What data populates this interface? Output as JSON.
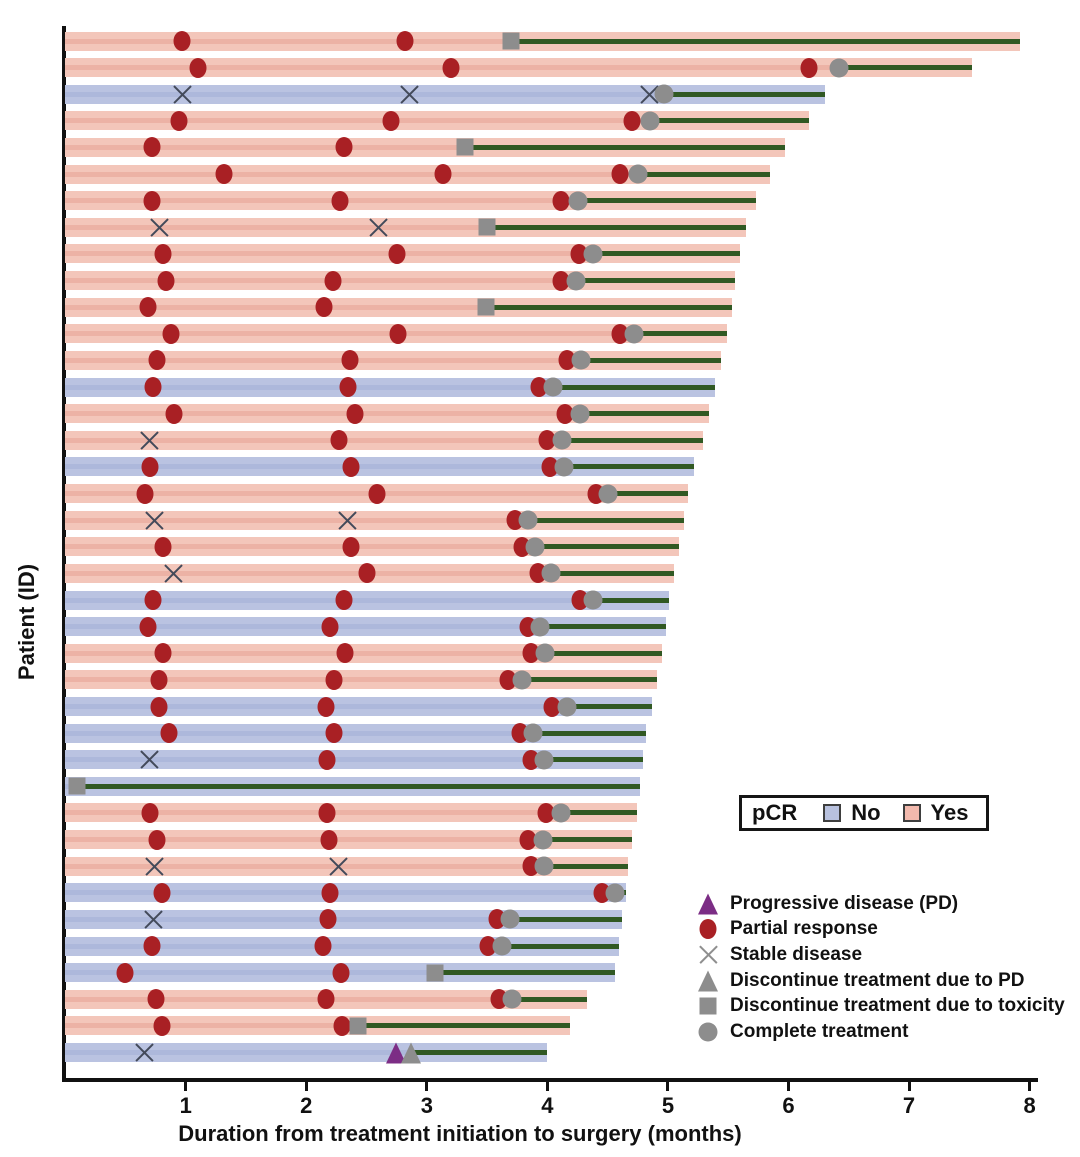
{
  "figure": {
    "x_axis": {
      "label": "Duration from treatment initiation to surgery (months)",
      "ticks": [
        1,
        2,
        3,
        4,
        5,
        6,
        7,
        8
      ],
      "min": 0,
      "max": 8
    },
    "y_axis": {
      "label": "Patient (ID)"
    }
  },
  "pcr_legend": {
    "title": "pCR",
    "no_label": "No",
    "yes_label": "Yes"
  },
  "marker_legend": [
    {
      "type": "pd",
      "label": "Progressive disease (PD)"
    },
    {
      "type": "pr",
      "label": "Partial response"
    },
    {
      "type": "sd",
      "label": "Stable disease"
    },
    {
      "type": "disc_pd",
      "label": "Discontinue treatment due to PD"
    },
    {
      "type": "disc_tox",
      "label": "Discontinue treatment due to toxicity"
    },
    {
      "type": "complete",
      "label": "Complete treatment"
    }
  ],
  "colors": {
    "pcr_yes": "#f3c6ba",
    "pcr_no": "#bac3e1",
    "partial_response": "#a92024",
    "surgery_line": "#315923",
    "gray_marker": "#8d8d8d",
    "progressive_disease": "#7c2d85",
    "axis": "#111111"
  },
  "chart_data": {
    "type": "bar",
    "subtype": "swimmer-plot",
    "xlabel": "Duration from treatment initiation to surgery (months)",
    "ylabel": "Patient (ID)",
    "xlim": [
      0,
      8
    ],
    "x_ticks": [
      1,
      2,
      3,
      4,
      5,
      6,
      7,
      8
    ],
    "grid": false,
    "legend_position": "lower-right",
    "patients": [
      {
        "pcr": "Yes",
        "surgery": 7.92,
        "treatment_end": 3.7,
        "markers": [
          {
            "type": "pr",
            "month": 0.97
          },
          {
            "type": "pr",
            "month": 2.82
          },
          {
            "type": "disc_tox",
            "month": 3.7
          }
        ]
      },
      {
        "pcr": "Yes",
        "surgery": 7.52,
        "treatment_end": 6.42,
        "markers": [
          {
            "type": "pr",
            "month": 1.1
          },
          {
            "type": "pr",
            "month": 3.2
          },
          {
            "type": "pr",
            "month": 6.17
          },
          {
            "type": "complete",
            "month": 6.42
          }
        ]
      },
      {
        "pcr": "No",
        "surgery": 6.3,
        "treatment_end": 4.97,
        "markers": [
          {
            "type": "sd",
            "month": 0.97
          },
          {
            "type": "sd",
            "month": 2.86
          },
          {
            "type": "sd",
            "month": 4.85
          },
          {
            "type": "complete",
            "month": 4.97
          }
        ]
      },
      {
        "pcr": "Yes",
        "surgery": 6.17,
        "treatment_end": 4.85,
        "markers": [
          {
            "type": "pr",
            "month": 0.94
          },
          {
            "type": "pr",
            "month": 2.7
          },
          {
            "type": "pr",
            "month": 4.7
          },
          {
            "type": "complete",
            "month": 4.85
          }
        ]
      },
      {
        "pcr": "Yes",
        "surgery": 5.97,
        "treatment_end": 3.32,
        "markers": [
          {
            "type": "pr",
            "month": 0.72
          },
          {
            "type": "pr",
            "month": 2.31
          },
          {
            "type": "disc_tox",
            "month": 3.32
          }
        ]
      },
      {
        "pcr": "Yes",
        "surgery": 5.85,
        "treatment_end": 4.75,
        "markers": [
          {
            "type": "pr",
            "month": 1.32
          },
          {
            "type": "pr",
            "month": 3.13
          },
          {
            "type": "pr",
            "month": 4.6
          },
          {
            "type": "complete",
            "month": 4.75
          }
        ]
      },
      {
        "pcr": "Yes",
        "surgery": 5.73,
        "treatment_end": 4.25,
        "markers": [
          {
            "type": "pr",
            "month": 0.72
          },
          {
            "type": "pr",
            "month": 2.28
          },
          {
            "type": "pr",
            "month": 4.11
          },
          {
            "type": "complete",
            "month": 4.25
          }
        ]
      },
      {
        "pcr": "Yes",
        "surgery": 5.65,
        "treatment_end": 3.5,
        "markers": [
          {
            "type": "sd",
            "month": 0.78
          },
          {
            "type": "sd",
            "month": 2.6
          },
          {
            "type": "disc_tox",
            "month": 3.5
          }
        ]
      },
      {
        "pcr": "Yes",
        "surgery": 5.6,
        "treatment_end": 4.38,
        "markers": [
          {
            "type": "pr",
            "month": 0.81
          },
          {
            "type": "pr",
            "month": 2.75
          },
          {
            "type": "pr",
            "month": 4.26
          },
          {
            "type": "complete",
            "month": 4.38
          }
        ]
      },
      {
        "pcr": "Yes",
        "surgery": 5.56,
        "treatment_end": 4.24,
        "markers": [
          {
            "type": "pr",
            "month": 0.84
          },
          {
            "type": "pr",
            "month": 2.22
          },
          {
            "type": "pr",
            "month": 4.11
          },
          {
            "type": "complete",
            "month": 4.24
          }
        ]
      },
      {
        "pcr": "Yes",
        "surgery": 5.53,
        "treatment_end": 3.49,
        "markers": [
          {
            "type": "pr",
            "month": 0.69
          },
          {
            "type": "pr",
            "month": 2.15
          },
          {
            "type": "disc_tox",
            "month": 3.49
          }
        ]
      },
      {
        "pcr": "Yes",
        "surgery": 5.49,
        "treatment_end": 4.72,
        "markers": [
          {
            "type": "pr",
            "month": 0.88
          },
          {
            "type": "pr",
            "month": 2.76
          },
          {
            "type": "pr",
            "month": 4.6
          },
          {
            "type": "complete",
            "month": 4.72
          }
        ]
      },
      {
        "pcr": "Yes",
        "surgery": 5.44,
        "treatment_end": 4.28,
        "markers": [
          {
            "type": "pr",
            "month": 0.76
          },
          {
            "type": "pr",
            "month": 2.36
          },
          {
            "type": "pr",
            "month": 4.16
          },
          {
            "type": "complete",
            "month": 4.28
          }
        ]
      },
      {
        "pcr": "No",
        "surgery": 5.39,
        "treatment_end": 4.05,
        "markers": [
          {
            "type": "pr",
            "month": 0.73
          },
          {
            "type": "pr",
            "month": 2.35
          },
          {
            "type": "pr",
            "month": 3.93
          },
          {
            "type": "complete",
            "month": 4.05
          }
        ]
      },
      {
        "pcr": "Yes",
        "surgery": 5.34,
        "treatment_end": 4.27,
        "markers": [
          {
            "type": "pr",
            "month": 0.9
          },
          {
            "type": "pr",
            "month": 2.4
          },
          {
            "type": "pr",
            "month": 4.15
          },
          {
            "type": "complete",
            "month": 4.27
          }
        ]
      },
      {
        "pcr": "Yes",
        "surgery": 5.29,
        "treatment_end": 4.12,
        "markers": [
          {
            "type": "sd",
            "month": 0.7
          },
          {
            "type": "pr",
            "month": 2.27
          },
          {
            "type": "pr",
            "month": 4.0
          },
          {
            "type": "complete",
            "month": 4.12
          }
        ]
      },
      {
        "pcr": "No",
        "surgery": 5.22,
        "treatment_end": 4.14,
        "markers": [
          {
            "type": "pr",
            "month": 0.7
          },
          {
            "type": "pr",
            "month": 2.37
          },
          {
            "type": "pr",
            "month": 4.02
          },
          {
            "type": "complete",
            "month": 4.14
          }
        ]
      },
      {
        "pcr": "Yes",
        "surgery": 5.17,
        "treatment_end": 4.5,
        "markers": [
          {
            "type": "pr",
            "month": 0.66
          },
          {
            "type": "pr",
            "month": 2.59
          },
          {
            "type": "pr",
            "month": 4.4
          },
          {
            "type": "complete",
            "month": 4.5
          }
        ]
      },
      {
        "pcr": "Yes",
        "surgery": 5.13,
        "treatment_end": 3.84,
        "markers": [
          {
            "type": "sd",
            "month": 0.74
          },
          {
            "type": "sd",
            "month": 2.34
          },
          {
            "type": "pr",
            "month": 3.73
          },
          {
            "type": "complete",
            "month": 3.84
          }
        ]
      },
      {
        "pcr": "Yes",
        "surgery": 5.09,
        "treatment_end": 3.9,
        "markers": [
          {
            "type": "pr",
            "month": 0.81
          },
          {
            "type": "pr",
            "month": 2.37
          },
          {
            "type": "pr",
            "month": 3.79
          },
          {
            "type": "complete",
            "month": 3.9
          }
        ]
      },
      {
        "pcr": "Yes",
        "surgery": 5.05,
        "treatment_end": 4.03,
        "markers": [
          {
            "type": "sd",
            "month": 0.9
          },
          {
            "type": "pr",
            "month": 2.5
          },
          {
            "type": "pr",
            "month": 3.92
          },
          {
            "type": "complete",
            "month": 4.03
          }
        ]
      },
      {
        "pcr": "No",
        "surgery": 5.01,
        "treatment_end": 4.38,
        "markers": [
          {
            "type": "pr",
            "month": 0.73
          },
          {
            "type": "pr",
            "month": 2.31
          },
          {
            "type": "pr",
            "month": 4.27
          },
          {
            "type": "complete",
            "month": 4.38
          }
        ]
      },
      {
        "pcr": "No",
        "surgery": 4.98,
        "treatment_end": 3.94,
        "markers": [
          {
            "type": "pr",
            "month": 0.69
          },
          {
            "type": "pr",
            "month": 2.2
          },
          {
            "type": "pr",
            "month": 3.84
          },
          {
            "type": "complete",
            "month": 3.94
          }
        ]
      },
      {
        "pcr": "Yes",
        "surgery": 4.95,
        "treatment_end": 3.98,
        "markers": [
          {
            "type": "pr",
            "month": 0.81
          },
          {
            "type": "pr",
            "month": 2.32
          },
          {
            "type": "pr",
            "month": 3.86
          },
          {
            "type": "complete",
            "month": 3.98
          }
        ]
      },
      {
        "pcr": "Yes",
        "surgery": 4.91,
        "treatment_end": 3.79,
        "markers": [
          {
            "type": "pr",
            "month": 0.78
          },
          {
            "type": "pr",
            "month": 2.23
          },
          {
            "type": "pr",
            "month": 3.67
          },
          {
            "type": "complete",
            "month": 3.79
          }
        ]
      },
      {
        "pcr": "No",
        "surgery": 4.87,
        "treatment_end": 4.16,
        "markers": [
          {
            "type": "pr",
            "month": 0.78
          },
          {
            "type": "pr",
            "month": 2.16
          },
          {
            "type": "pr",
            "month": 4.04
          },
          {
            "type": "complete",
            "month": 4.16
          }
        ]
      },
      {
        "pcr": "No",
        "surgery": 4.82,
        "treatment_end": 3.88,
        "markers": [
          {
            "type": "pr",
            "month": 0.86
          },
          {
            "type": "pr",
            "month": 2.23
          },
          {
            "type": "pr",
            "month": 3.77
          },
          {
            "type": "complete",
            "month": 3.88
          }
        ]
      },
      {
        "pcr": "No",
        "surgery": 4.79,
        "treatment_end": 3.97,
        "markers": [
          {
            "type": "sd",
            "month": 0.7
          },
          {
            "type": "pr",
            "month": 2.17
          },
          {
            "type": "pr",
            "month": 3.86
          },
          {
            "type": "complete",
            "month": 3.97
          }
        ]
      },
      {
        "pcr": "No",
        "surgery": 4.77,
        "treatment_end": 0.1,
        "markers": [
          {
            "type": "disc_tox",
            "month": 0.1
          }
        ]
      },
      {
        "pcr": "Yes",
        "surgery": 4.74,
        "treatment_end": 4.11,
        "markers": [
          {
            "type": "pr",
            "month": 0.7
          },
          {
            "type": "pr",
            "month": 2.17
          },
          {
            "type": "pr",
            "month": 3.99
          },
          {
            "type": "complete",
            "month": 4.11
          }
        ]
      },
      {
        "pcr": "Yes",
        "surgery": 4.7,
        "treatment_end": 3.96,
        "markers": [
          {
            "type": "pr",
            "month": 0.76
          },
          {
            "type": "pr",
            "month": 2.19
          },
          {
            "type": "pr",
            "month": 3.84
          },
          {
            "type": "complete",
            "month": 3.96
          }
        ]
      },
      {
        "pcr": "Yes",
        "surgery": 4.67,
        "treatment_end": 3.97,
        "markers": [
          {
            "type": "sd",
            "month": 0.74
          },
          {
            "type": "sd",
            "month": 2.27
          },
          {
            "type": "pr",
            "month": 3.86
          },
          {
            "type": "complete",
            "month": 3.97
          }
        ]
      },
      {
        "pcr": "No",
        "surgery": 4.65,
        "treatment_end": 4.56,
        "markers": [
          {
            "type": "pr",
            "month": 0.8
          },
          {
            "type": "pr",
            "month": 2.2
          },
          {
            "type": "pr",
            "month": 4.45
          },
          {
            "type": "complete",
            "month": 4.56
          }
        ]
      },
      {
        "pcr": "No",
        "surgery": 4.62,
        "treatment_end": 3.69,
        "markers": [
          {
            "type": "sd",
            "month": 0.73
          },
          {
            "type": "pr",
            "month": 2.18
          },
          {
            "type": "pr",
            "month": 3.58
          },
          {
            "type": "complete",
            "month": 3.69
          }
        ]
      },
      {
        "pcr": "No",
        "surgery": 4.59,
        "treatment_end": 3.62,
        "markers": [
          {
            "type": "pr",
            "month": 0.72
          },
          {
            "type": "pr",
            "month": 2.14
          },
          {
            "type": "pr",
            "month": 3.51
          },
          {
            "type": "complete",
            "month": 3.62
          }
        ]
      },
      {
        "pcr": "No",
        "surgery": 4.56,
        "treatment_end": 3.07,
        "markers": [
          {
            "type": "pr",
            "month": 0.5
          },
          {
            "type": "pr",
            "month": 2.29
          },
          {
            "type": "disc_tox",
            "month": 3.07
          }
        ]
      },
      {
        "pcr": "Yes",
        "surgery": 4.33,
        "treatment_end": 3.71,
        "markers": [
          {
            "type": "pr",
            "month": 0.75
          },
          {
            "type": "pr",
            "month": 2.16
          },
          {
            "type": "pr",
            "month": 3.6
          },
          {
            "type": "complete",
            "month": 3.71
          }
        ]
      },
      {
        "pcr": "Yes",
        "surgery": 4.19,
        "treatment_end": 2.43,
        "markers": [
          {
            "type": "pr",
            "month": 0.8
          },
          {
            "type": "pr",
            "month": 2.3
          },
          {
            "type": "disc_tox",
            "month": 2.43
          }
        ]
      },
      {
        "pcr": "No",
        "surgery": 4.0,
        "treatment_end": 2.88,
        "markers": [
          {
            "type": "sd",
            "month": 0.66
          },
          {
            "type": "pd",
            "month": 2.74
          },
          {
            "type": "disc_pd",
            "month": 2.87
          }
        ]
      }
    ]
  }
}
